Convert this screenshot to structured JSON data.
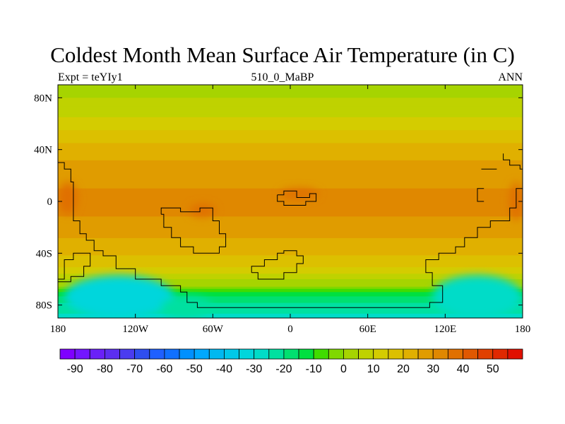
{
  "header": {
    "title": "Coldest Month Mean Surface Air Temperature (in C)",
    "left_subtitle": "Expt = teYIy1",
    "center_subtitle": "510_0_MaBP",
    "right_subtitle": "ANN"
  },
  "chart_data": {
    "type": "heatmap",
    "title": "Coldest Month Mean Surface Air Temperature (in C)",
    "projection": "cylindrical-equidistant",
    "xlim": [
      -180,
      180
    ],
    "ylim": [
      -90,
      90
    ],
    "x_ticks": [
      {
        "value": -180,
        "label": "180"
      },
      {
        "value": -120,
        "label": "120W"
      },
      {
        "value": -60,
        "label": "60W"
      },
      {
        "value": 0,
        "label": "0"
      },
      {
        "value": 60,
        "label": "60E"
      },
      {
        "value": 120,
        "label": "120E"
      },
      {
        "value": 180,
        "label": "180"
      }
    ],
    "y_ticks": [
      {
        "value": 80,
        "label": "80N"
      },
      {
        "value": 40,
        "label": "40N"
      },
      {
        "value": 0,
        "label": "0"
      },
      {
        "value": -40,
        "label": "40S"
      },
      {
        "value": -80,
        "label": "80S"
      }
    ],
    "zonal_mean_profile": {
      "lat": [
        90,
        80,
        70,
        60,
        50,
        40,
        30,
        20,
        10,
        0,
        -10,
        -20,
        -30,
        -40,
        -50,
        -55,
        -60,
        -65,
        -70,
        -80,
        -90
      ],
      "temp": [
        4,
        5,
        8,
        13,
        18,
        22,
        26,
        29,
        30,
        30,
        30,
        28,
        24,
        20,
        15,
        10,
        4,
        0,
        -12,
        -24,
        -26
      ]
    },
    "warm_anomalies": [
      {
        "lon_range": [
          -8,
          22
        ],
        "lat_range": [
          2,
          10
        ],
        "temp": 38
      },
      {
        "lon_range": [
          -180,
          -165
        ],
        "lat_range": [
          -10,
          15
        ],
        "temp": 38
      },
      {
        "lon_range": [
          170,
          180
        ],
        "lat_range": [
          -15,
          15
        ],
        "temp": 38
      },
      {
        "lon_range": [
          -78,
          -58
        ],
        "lat_range": [
          -12,
          -2
        ],
        "temp": 38
      }
    ],
    "cold_anomalies": [
      {
        "lon_range": [
          -175,
          -90
        ],
        "lat_range": [
          -90,
          -57
        ],
        "temp": -34
      },
      {
        "lon_range": [
          110,
          180
        ],
        "lat_range": [
          -90,
          -57
        ],
        "temp": -28
      },
      {
        "lon_range": [
          -100,
          -60
        ],
        "lat_range": [
          -90,
          -73
        ],
        "temp": -22
      }
    ],
    "coastlines": [
      [
        [
          -180,
          30
        ],
        [
          -175,
          30
        ],
        [
          -175,
          25
        ],
        [
          -170,
          25
        ],
        [
          -170,
          15
        ],
        [
          -168,
          15
        ],
        [
          -168,
          -15
        ],
        [
          -163,
          -15
        ],
        [
          -163,
          -25
        ],
        [
          -158,
          -25
        ],
        [
          -158,
          -30
        ],
        [
          -152,
          -30
        ],
        [
          -152,
          -38
        ],
        [
          -145,
          -38
        ],
        [
          -145,
          -42
        ],
        [
          -135,
          -42
        ],
        [
          -135,
          -52
        ],
        [
          -120,
          -52
        ],
        [
          -120,
          -60
        ],
        [
          -100,
          -60
        ],
        [
          -100,
          -65
        ],
        [
          -85,
          -65
        ],
        [
          -85,
          -70
        ],
        [
          -80,
          -70
        ],
        [
          -80,
          -78
        ],
        [
          -72,
          -78
        ],
        [
          -72,
          -82
        ],
        [
          -15,
          -82
        ],
        [
          10,
          -82
        ],
        [
          108,
          -82
        ],
        [
          108,
          -78
        ],
        [
          118,
          -78
        ],
        [
          118,
          -65
        ],
        [
          110,
          -65
        ],
        [
          110,
          -55
        ],
        [
          105,
          -55
        ],
        [
          105,
          -45
        ],
        [
          115,
          -45
        ],
        [
          115,
          -40
        ],
        [
          128,
          -40
        ],
        [
          128,
          -35
        ],
        [
          135,
          -35
        ],
        [
          135,
          -28
        ],
        [
          145,
          -28
        ],
        [
          145,
          -20
        ],
        [
          155,
          -20
        ],
        [
          155,
          -15
        ],
        [
          170,
          -15
        ],
        [
          170,
          -5
        ],
        [
          175,
          -5
        ],
        [
          175,
          10
        ],
        [
          180,
          10
        ]
      ],
      [
        [
          -180,
          -60
        ],
        [
          -175,
          -60
        ],
        [
          -175,
          -45
        ],
        [
          -168,
          -45
        ],
        [
          -168,
          -40
        ],
        [
          -155,
          -40
        ],
        [
          -155,
          -50
        ],
        [
          -160,
          -50
        ],
        [
          -160,
          -58
        ],
        [
          -170,
          -58
        ],
        [
          -170,
          -62
        ],
        [
          -180,
          -62
        ]
      ],
      [
        [
          -100,
          -10
        ],
        [
          -98,
          -10
        ],
        [
          -98,
          -20
        ],
        [
          -92,
          -20
        ],
        [
          -92,
          -28
        ],
        [
          -85,
          -28
        ],
        [
          -85,
          -35
        ],
        [
          -75,
          -35
        ],
        [
          -75,
          -40
        ],
        [
          -55,
          -40
        ],
        [
          -55,
          -35
        ],
        [
          -50,
          -35
        ],
        [
          -50,
          -25
        ],
        [
          -55,
          -25
        ],
        [
          -55,
          -15
        ],
        [
          -60,
          -15
        ],
        [
          -60,
          -5
        ],
        [
          -70,
          -5
        ],
        [
          -70,
          -8
        ],
        [
          -85,
          -8
        ],
        [
          -85,
          -5
        ],
        [
          -100,
          -5
        ],
        [
          -100,
          -10
        ]
      ],
      [
        [
          -10,
          5
        ],
        [
          -5,
          5
        ],
        [
          -5,
          8
        ],
        [
          5,
          8
        ],
        [
          5,
          3
        ],
        [
          15,
          3
        ],
        [
          15,
          6
        ],
        [
          20,
          6
        ],
        [
          20,
          0
        ],
        [
          12,
          0
        ],
        [
          12,
          -3
        ],
        [
          -5,
          -3
        ],
        [
          -5,
          0
        ],
        [
          -10,
          0
        ],
        [
          -10,
          5
        ]
      ],
      [
        [
          -30,
          -55
        ],
        [
          -30,
          -50
        ],
        [
          -20,
          -50
        ],
        [
          -20,
          -45
        ],
        [
          -10,
          -45
        ],
        [
          -10,
          -40
        ],
        [
          -5,
          -40
        ],
        [
          -5,
          -38
        ],
        [
          5,
          -38
        ],
        [
          5,
          -42
        ],
        [
          10,
          -42
        ],
        [
          10,
          -48
        ],
        [
          5,
          -48
        ],
        [
          5,
          -55
        ],
        [
          -5,
          -55
        ],
        [
          -5,
          -60
        ],
        [
          -25,
          -60
        ],
        [
          -25,
          -55
        ],
        [
          -30,
          -55
        ]
      ],
      [
        [
          165,
          37
        ],
        [
          165,
          32
        ],
        [
          170,
          32
        ],
        [
          170,
          28
        ],
        [
          178,
          28
        ],
        [
          178,
          25
        ],
        [
          180,
          25
        ]
      ],
      [
        [
          150,
          10
        ],
        [
          145,
          10
        ],
        [
          145,
          0
        ],
        [
          150,
          0
        ]
      ],
      [
        [
          148,
          25
        ],
        [
          160,
          25
        ]
      ]
    ]
  },
  "colorbar": {
    "colors": [
      "#7f00ff",
      "#7316ff",
      "#6a20f8",
      "#5c2ef0",
      "#4b3cf0",
      "#2f4ef0",
      "#1f60ff",
      "#1070ff",
      "#0090ff",
      "#00a8ff",
      "#00b8f0",
      "#00c8e8",
      "#00d6dc",
      "#00dcc8",
      "#00e0a0",
      "#00e070",
      "#00e040",
      "#40dc00",
      "#80d800",
      "#a6d400",
      "#bfd200",
      "#d4cc00",
      "#dcc000",
      "#e0b000",
      "#e09c00",
      "#e08800",
      "#e07000",
      "#e05800",
      "#e04000",
      "#e02800",
      "#e01000"
    ],
    "labels": [
      "-90",
      "-80",
      "-70",
      "-60",
      "-50",
      "-40",
      "-30",
      "-20",
      "-10",
      "0",
      "10",
      "20",
      "30",
      "40",
      "50"
    ],
    "values": [
      -90,
      -80,
      -70,
      -60,
      -50,
      -40,
      -30,
      -20,
      -10,
      0,
      10,
      20,
      30,
      40,
      50
    ]
  }
}
